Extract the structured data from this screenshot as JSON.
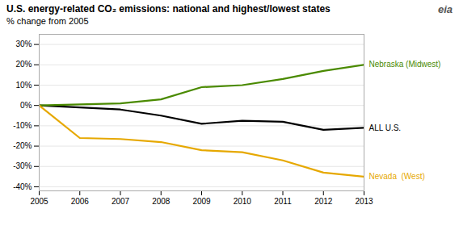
{
  "chart_data": {
    "type": "line",
    "title": "U.S. energy-related CO₂ emissions:  national and highest/lowest states",
    "subtitle": "% change from 2005",
    "annotations": [
      "eia"
    ],
    "x": [
      2005,
      2006,
      2007,
      2008,
      2009,
      2010,
      2011,
      2012,
      2013
    ],
    "series": [
      {
        "name": "ALL U.S.",
        "color": "#000000",
        "values": [
          0,
          -1,
          -2,
          -5,
          -9,
          -7.5,
          -8,
          -12,
          -11
        ]
      },
      {
        "name": "Nebraska (Midwest)",
        "color": "#4a8a00",
        "values": [
          0,
          0.5,
          1,
          3,
          9,
          10,
          13,
          17,
          20
        ]
      },
      {
        "name": "Nevada  (West)",
        "color": "#e6a800",
        "values": [
          0,
          -16,
          -16.5,
          -18,
          -22,
          -23,
          -27,
          -33,
          -35
        ]
      }
    ],
    "xlim": [
      2005,
      2013
    ],
    "xticks": [
      2005,
      2006,
      2007,
      2008,
      2009,
      2010,
      2011,
      2012,
      2013
    ],
    "ylim": [
      -42,
      35
    ],
    "yticks": [
      {
        "value": -40,
        "label": "-40%"
      },
      {
        "value": -30,
        "label": "-30%"
      },
      {
        "value": -20,
        "label": "-20%"
      },
      {
        "value": -10,
        "label": "-10%"
      },
      {
        "value": 0,
        "label": "0%"
      },
      {
        "value": 10,
        "label": "10%"
      },
      {
        "value": 20,
        "label": "20%"
      },
      {
        "value": 30,
        "label": "30%"
      }
    ],
    "grid": true
  }
}
